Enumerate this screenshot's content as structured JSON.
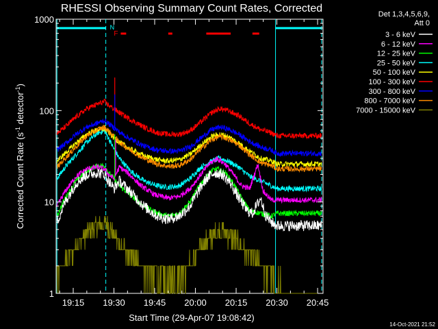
{
  "chart_data": {
    "type": "line",
    "title": "RHESSI Observing Summary Count Rates, Corrected",
    "xlabel": "Start Time (29-Apr-07 19:08:42)",
    "ylabel_main": "Corrected Count Rate (s",
    "ylabel_sup1": "-1",
    "ylabel_mid": " detector",
    "ylabel_sup2": "-1",
    "ylabel_end": ")",
    "yscale": "log",
    "ylim": [
      1,
      1000
    ],
    "xlim_min": [
      1148.7,
      1247.0
    ],
    "xticks": [
      {
        "t": 1155,
        "label": "19:15"
      },
      {
        "t": 1170,
        "label": "19:30"
      },
      {
        "t": 1185,
        "label": "19:45"
      },
      {
        "t": 1200,
        "label": "20:00"
      },
      {
        "t": 1215,
        "label": "20:15"
      },
      {
        "t": 1230,
        "label": "20:30"
      },
      {
        "t": 1245,
        "label": "20:45"
      }
    ],
    "yticks": [
      {
        "v": 1,
        "label": "1"
      },
      {
        "v": 10,
        "label": "10"
      },
      {
        "v": 100,
        "label": "100"
      },
      {
        "v": 1000,
        "label": "1000"
      }
    ],
    "legend_header": [
      "Det 1,3,4,5,6,9,",
      "Att 0"
    ],
    "legend_position": "right",
    "series": [
      {
        "name": "3 - 6 keV",
        "color": "#ffffff",
        "points": [
          [
            1149,
            6
          ],
          [
            1152,
            10
          ],
          [
            1156,
            16
          ],
          [
            1160,
            20
          ],
          [
            1164,
            21
          ],
          [
            1166.5,
            20
          ],
          [
            1168,
            17
          ],
          [
            1170,
            14
          ],
          [
            1172,
            17
          ],
          [
            1176,
            13
          ],
          [
            1181,
            9
          ],
          [
            1186,
            7
          ],
          [
            1190,
            6.5
          ],
          [
            1194,
            7
          ],
          [
            1198,
            9
          ],
          [
            1201,
            13
          ],
          [
            1204,
            18
          ],
          [
            1207,
            21
          ],
          [
            1210,
            20
          ],
          [
            1213,
            16
          ],
          [
            1216,
            11
          ],
          [
            1219,
            8
          ],
          [
            1221,
            7.5
          ],
          [
            1224,
            11
          ],
          [
            1226,
            7
          ],
          [
            1228,
            6
          ],
          [
            1230,
            5.5
          ],
          [
            1240,
            5.5
          ],
          [
            1247,
            5.5
          ]
        ]
      },
      {
        "name": "6 - 12 keV",
        "color": "#ff00ff",
        "points": [
          [
            1149,
            9
          ],
          [
            1152,
            13
          ],
          [
            1156,
            19
          ],
          [
            1160,
            23
          ],
          [
            1164,
            24
          ],
          [
            1166.5,
            23
          ],
          [
            1168,
            20
          ],
          [
            1170,
            18
          ],
          [
            1172,
            24
          ],
          [
            1175,
            21
          ],
          [
            1180,
            15
          ],
          [
            1185,
            12
          ],
          [
            1190,
            11
          ],
          [
            1194,
            11.5
          ],
          [
            1198,
            14
          ],
          [
            1202,
            20
          ],
          [
            1205,
            26
          ],
          [
            1208,
            30
          ],
          [
            1211,
            26
          ],
          [
            1214,
            20
          ],
          [
            1217,
            15
          ],
          [
            1220,
            14
          ],
          [
            1223,
            26
          ],
          [
            1225,
            13
          ],
          [
            1228,
            10.5
          ],
          [
            1230,
            10.5
          ],
          [
            1240,
            10.5
          ],
          [
            1247,
            10.5
          ]
        ]
      },
      {
        "name": "12 - 25 keV",
        "color": "#00ff00",
        "points": [
          [
            1149,
            7
          ],
          [
            1152,
            11
          ],
          [
            1156,
            17
          ],
          [
            1160,
            22
          ],
          [
            1164,
            25
          ],
          [
            1166.5,
            25
          ],
          [
            1168,
            21
          ],
          [
            1170,
            18
          ],
          [
            1172,
            15
          ],
          [
            1176,
            12
          ],
          [
            1181,
            9
          ],
          [
            1186,
            7.5
          ],
          [
            1190,
            7
          ],
          [
            1194,
            7.5
          ],
          [
            1198,
            10
          ],
          [
            1202,
            16
          ],
          [
            1206,
            22
          ],
          [
            1208,
            23
          ],
          [
            1211,
            21
          ],
          [
            1214,
            16
          ],
          [
            1217,
            11
          ],
          [
            1220,
            8
          ],
          [
            1224,
            7.5
          ],
          [
            1228,
            7
          ],
          [
            1230,
            7.5
          ],
          [
            1240,
            7.5
          ],
          [
            1247,
            7.5
          ]
        ]
      },
      {
        "name": "25 - 50 keV",
        "color": "#00ffff",
        "points": [
          [
            1149,
            18
          ],
          [
            1152,
            24
          ],
          [
            1156,
            33
          ],
          [
            1160,
            45
          ],
          [
            1164,
            57
          ],
          [
            1166.5,
            60
          ],
          [
            1168,
            50
          ],
          [
            1170,
            38
          ],
          [
            1172,
            30
          ],
          [
            1176,
            22
          ],
          [
            1181,
            17
          ],
          [
            1186,
            15
          ],
          [
            1190,
            14.5
          ],
          [
            1194,
            15
          ],
          [
            1198,
            18
          ],
          [
            1202,
            24
          ],
          [
            1206,
            28
          ],
          [
            1209,
            30
          ],
          [
            1212,
            28
          ],
          [
            1216,
            24
          ],
          [
            1220,
            19
          ],
          [
            1224,
            17
          ],
          [
            1228,
            15
          ],
          [
            1230,
            14
          ],
          [
            1240,
            14
          ],
          [
            1247,
            14
          ]
        ]
      },
      {
        "name": "50 - 100 keV",
        "color": "#ffff00",
        "points": [
          [
            1149,
            28
          ],
          [
            1152,
            34
          ],
          [
            1156,
            44
          ],
          [
            1160,
            55
          ],
          [
            1164,
            62
          ],
          [
            1166.5,
            63
          ],
          [
            1168,
            58
          ],
          [
            1170,
            50
          ],
          [
            1172,
            45
          ],
          [
            1176,
            38
          ],
          [
            1181,
            32
          ],
          [
            1186,
            29
          ],
          [
            1190,
            28
          ],
          [
            1194,
            29
          ],
          [
            1198,
            33
          ],
          [
            1202,
            42
          ],
          [
            1206,
            52
          ],
          [
            1209,
            55
          ],
          [
            1212,
            52
          ],
          [
            1216,
            44
          ],
          [
            1220,
            36
          ],
          [
            1224,
            30
          ],
          [
            1228,
            28
          ],
          [
            1230,
            26
          ],
          [
            1240,
            26
          ],
          [
            1247,
            26
          ]
        ]
      },
      {
        "name": "100 - 300 keV",
        "color": "#ff0000",
        "points": [
          [
            1149,
            56
          ],
          [
            1152,
            66
          ],
          [
            1156,
            85
          ],
          [
            1160,
            105
          ],
          [
            1164,
            118
          ],
          [
            1166.5,
            125
          ],
          [
            1168,
            115
          ],
          [
            1170,
            104
          ],
          [
            1172,
            95
          ],
          [
            1176,
            80
          ],
          [
            1181,
            66
          ],
          [
            1186,
            57
          ],
          [
            1190,
            55
          ],
          [
            1194,
            55
          ],
          [
            1198,
            60
          ],
          [
            1202,
            75
          ],
          [
            1206,
            95
          ],
          [
            1209,
            105
          ],
          [
            1212,
            100
          ],
          [
            1216,
            88
          ],
          [
            1220,
            72
          ],
          [
            1224,
            62
          ],
          [
            1228,
            57
          ],
          [
            1230,
            53
          ],
          [
            1240,
            53
          ],
          [
            1247,
            53
          ]
        ]
      },
      {
        "name": "300 - 800 keV",
        "color": "#0000ff",
        "points": [
          [
            1149,
            37
          ],
          [
            1152,
            43
          ],
          [
            1156,
            55
          ],
          [
            1160,
            66
          ],
          [
            1164,
            73
          ],
          [
            1166.5,
            78
          ],
          [
            1168,
            72
          ],
          [
            1170,
            65
          ],
          [
            1172,
            58
          ],
          [
            1176,
            49
          ],
          [
            1181,
            41
          ],
          [
            1186,
            37
          ],
          [
            1190,
            36
          ],
          [
            1194,
            36
          ],
          [
            1198,
            40
          ],
          [
            1202,
            50
          ],
          [
            1206,
            62
          ],
          [
            1209,
            66
          ],
          [
            1212,
            63
          ],
          [
            1216,
            55
          ],
          [
            1220,
            46
          ],
          [
            1224,
            40
          ],
          [
            1228,
            37
          ],
          [
            1230,
            34
          ],
          [
            1240,
            34
          ],
          [
            1247,
            34
          ]
        ]
      },
      {
        "name": "800 - 7000 keV",
        "color": "#ff8c00",
        "points": [
          [
            1149,
            24
          ],
          [
            1152,
            30
          ],
          [
            1156,
            40
          ],
          [
            1160,
            53
          ],
          [
            1164,
            62
          ],
          [
            1166.5,
            66
          ],
          [
            1168,
            60
          ],
          [
            1170,
            52
          ],
          [
            1172,
            45
          ],
          [
            1176,
            37
          ],
          [
            1181,
            30
          ],
          [
            1186,
            26
          ],
          [
            1190,
            24.5
          ],
          [
            1194,
            25
          ],
          [
            1198,
            29
          ],
          [
            1202,
            38
          ],
          [
            1206,
            48
          ],
          [
            1209,
            52
          ],
          [
            1212,
            49
          ],
          [
            1216,
            42
          ],
          [
            1220,
            33
          ],
          [
            1224,
            27
          ],
          [
            1228,
            25
          ],
          [
            1230,
            23
          ],
          [
            1240,
            23
          ],
          [
            1247,
            23
          ]
        ]
      },
      {
        "name": "7000 - 15000 keV",
        "color": "#808000",
        "points": [
          [
            1149,
            1.5
          ],
          [
            1152,
            2.2
          ],
          [
            1156,
            3.2
          ],
          [
            1160,
            4.3
          ],
          [
            1164,
            5.2
          ],
          [
            1166.5,
            5.5
          ],
          [
            1168,
            5.2
          ],
          [
            1170,
            4.2
          ],
          [
            1172,
            3.3
          ],
          [
            1176,
            2.4
          ],
          [
            1181,
            1.8
          ],
          [
            1186,
            1.4
          ],
          [
            1190,
            1.3
          ],
          [
            1194,
            1.5
          ],
          [
            1198,
            2
          ],
          [
            1202,
            3
          ],
          [
            1206,
            4.2
          ],
          [
            1209,
            4.6
          ],
          [
            1212,
            4.3
          ],
          [
            1216,
            3.4
          ],
          [
            1220,
            2.5
          ],
          [
            1224,
            1.9
          ],
          [
            1228,
            1.5
          ],
          [
            1230,
            1.2
          ],
          [
            1240,
            1.1
          ],
          [
            1247,
            1
          ]
        ]
      }
    ],
    "spikes": [
      {
        "series": "100 - 300 keV",
        "t": 1170.3,
        "v": 230
      },
      {
        "series": "300 - 800 keV",
        "t": 1170.3,
        "v": 150
      },
      {
        "series": "12 - 25 keV",
        "t": 1170.3,
        "v": 55
      },
      {
        "series": "6 - 12 keV",
        "t": 1170.6,
        "v": 48
      }
    ],
    "night_bars": [
      {
        "t0": 1149,
        "t1": 1167
      },
      {
        "t0": 1229.5,
        "t1": 1246.5
      }
    ],
    "night_marker": "N",
    "flare_marker": "F",
    "flare_bars": [
      {
        "t0": 1172.5,
        "t1": 1174.5
      },
      {
        "t0": 1190,
        "t1": 1191.5
      },
      {
        "t0": 1204,
        "t1": 1213
      },
      {
        "t0": 1221,
        "t1": 1223.5
      }
    ],
    "cyan_lines": [
      {
        "t": 1149,
        "style": "solid"
      },
      {
        "t": 1167,
        "style": "dashed"
      },
      {
        "t": 1229.5,
        "style": "solid"
      },
      {
        "t": 1246.5,
        "style": "dashed"
      }
    ],
    "grid": false,
    "timestamp": "14-Oct-2021 21:52"
  }
}
